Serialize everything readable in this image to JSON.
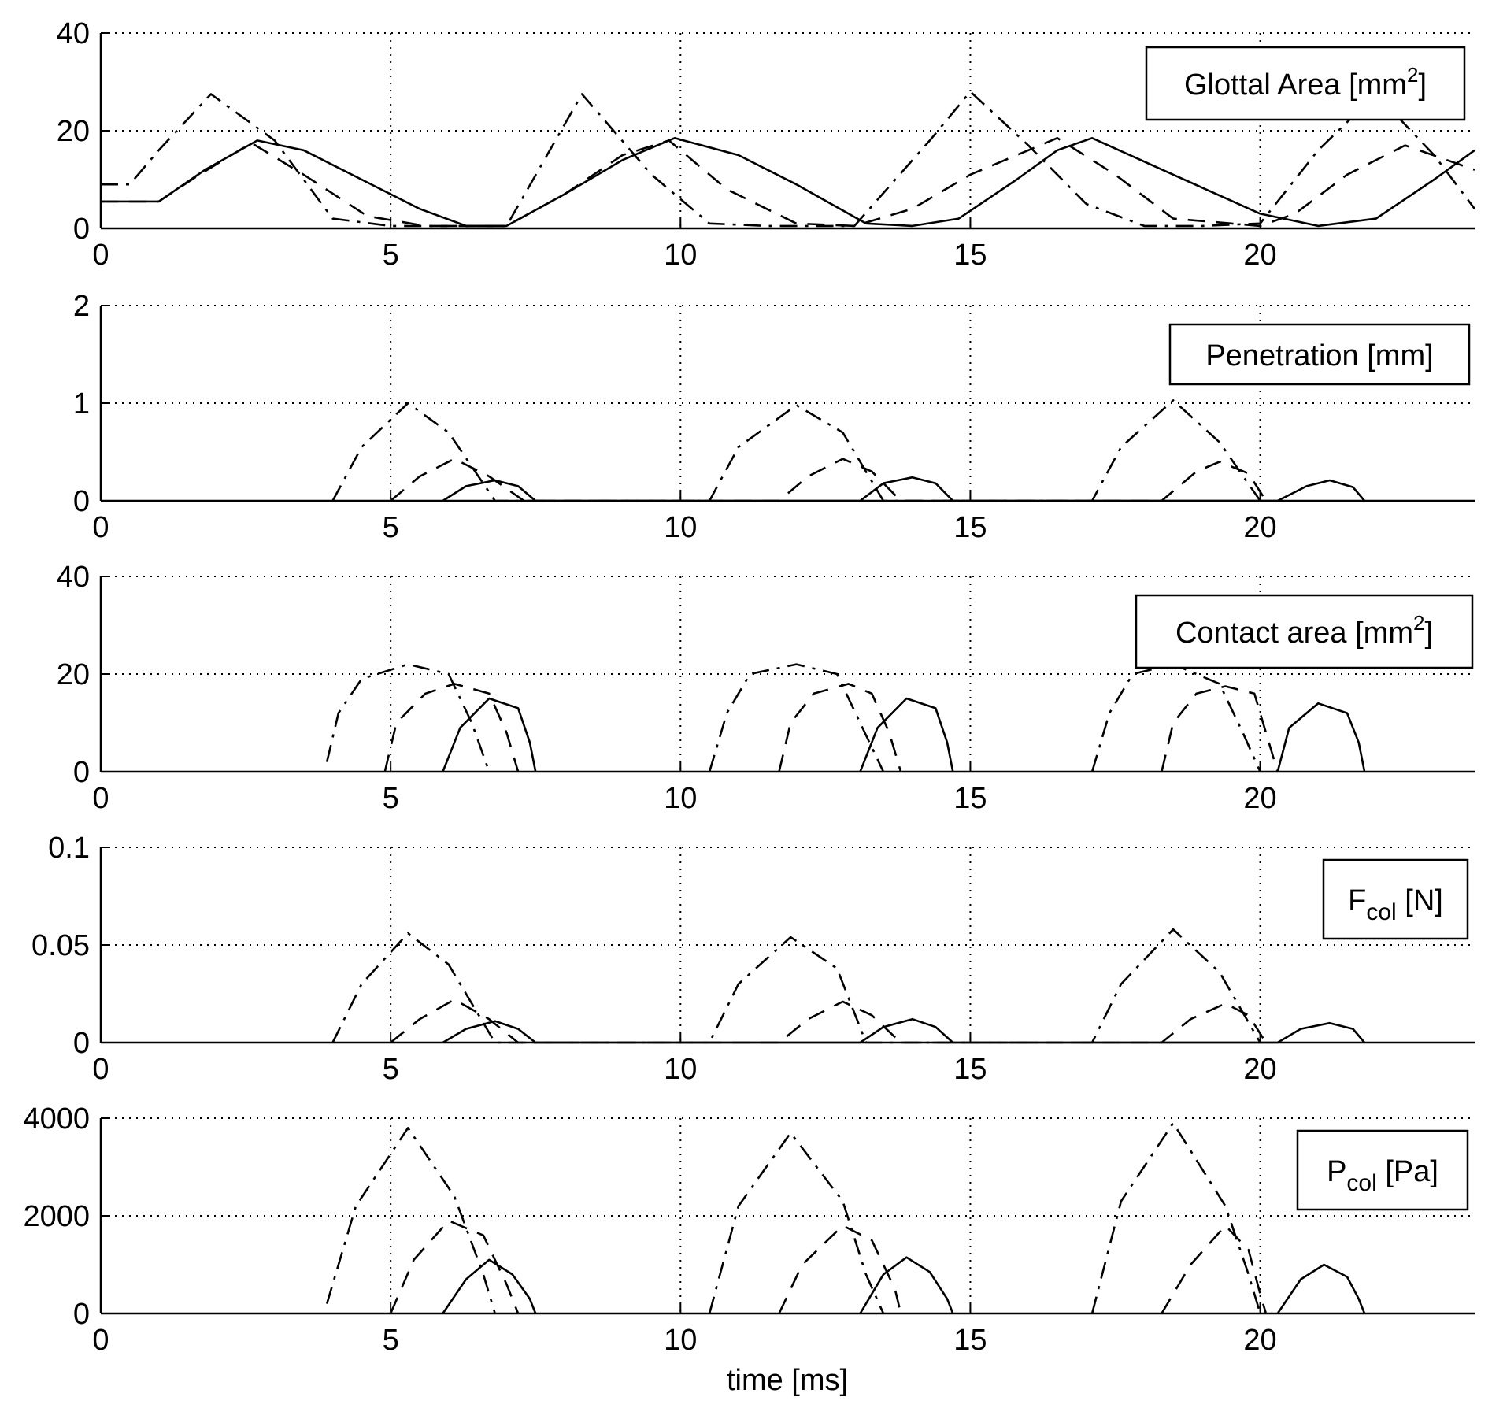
{
  "chart_data": {
    "type": "line",
    "xlabel": "time [ms]",
    "xlim": [
      0,
      23.7
    ],
    "xticks": [
      0,
      5,
      10,
      15,
      20
    ],
    "xtick_labels": [
      "0",
      "5",
      "10",
      "15",
      "20"
    ],
    "grid": true,
    "legend_placement": "top-right",
    "line_styles": [
      "dash-dot",
      "dashed",
      "solid"
    ],
    "panels": [
      {
        "id": "glottal-area",
        "legend": {
          "main": "Glottal Area [mm",
          "sup": "2",
          "post": "]"
        },
        "ylim": [
          0,
          40
        ],
        "yticks": [
          0,
          20,
          40
        ],
        "ytick_labels": [
          "0",
          "20",
          "40"
        ],
        "series": [
          {
            "name": "dash-dot",
            "style": "dash-dot",
            "x": [
              0,
              0.5,
              1.0,
              1.9,
              3.0,
              4.0,
              5.0,
              6.0,
              7.0,
              8.3,
              9.5,
              10.5,
              11.5,
              13.0,
              14.3,
              15.0,
              16.0,
              17.0,
              18.0,
              19.0,
              20.0,
              21.0,
              22.0,
              23.0,
              23.7
            ],
            "y": [
              9,
              9,
              16,
              27.5,
              18,
              2,
              0.5,
              0.5,
              0.5,
              27.5,
              11,
              1,
              0.5,
              0.5,
              18,
              28,
              17,
              5,
              0.5,
              0.5,
              1,
              16,
              27.5,
              15,
              4
            ]
          },
          {
            "name": "dashed",
            "style": "dashed",
            "x": [
              0,
              1.0,
              1.7,
              2.6,
              3.5,
              4.6,
              5.6,
              7.0,
              8.0,
              9.0,
              9.8,
              10.8,
              12.0,
              13.0,
              14.0,
              15.0,
              16.0,
              16.5,
              17.5,
              18.5,
              20.0,
              20.6,
              21.5,
              22.5,
              23.7
            ],
            "y": [
              5.5,
              5.5,
              11,
              17.5,
              11,
              2.5,
              0.5,
              0.5,
              7,
              15,
              18,
              8,
              1,
              0.5,
              4,
              11,
              16,
              18.5,
              11,
              2,
              0.5,
              3,
              11,
              17,
              12
            ]
          },
          {
            "name": "solid",
            "style": "solid",
            "x": [
              0,
              1.0,
              1.8,
              2.7,
              3.5,
              4.5,
              5.5,
              6.3,
              7.0,
              8.0,
              9.0,
              9.9,
              11.0,
              12.0,
              13.2,
              14.0,
              14.8,
              15.8,
              16.5,
              17.1,
              18.5,
              20.0,
              21.0,
              22.0,
              23.0,
              23.7
            ],
            "y": [
              5.5,
              5.5,
              12,
              18,
              16,
              10,
              4,
              0.5,
              0.5,
              7,
              14,
              18.5,
              15,
              9,
              1,
              0.5,
              2,
              10,
              16,
              18.5,
              11,
              3,
              0.5,
              2,
              10,
              16
            ]
          }
        ]
      },
      {
        "id": "penetration",
        "legend": {
          "main": "Penetration [mm]",
          "sub": "",
          "post": ""
        },
        "ylim": [
          0,
          2
        ],
        "yticks": [
          0,
          1,
          2
        ],
        "ytick_labels": [
          "0",
          "1",
          "2"
        ],
        "series": [
          {
            "name": "dash-dot",
            "style": "dash-dot",
            "x": [
              4.0,
              4.5,
              5.3,
              6.0,
              6.8,
              10.5,
              11.0,
              12.0,
              12.8,
              13.5,
              17.1,
              17.6,
              18.5,
              19.3,
              20.0
            ],
            "y": [
              0,
              0.55,
              1.0,
              0.7,
              0,
              0,
              0.55,
              0.98,
              0.7,
              0,
              0,
              0.55,
              1.03,
              0.6,
              0
            ]
          },
          {
            "name": "dashed",
            "style": "dashed",
            "x": [
              5.0,
              5.5,
              6.1,
              6.7,
              7.3,
              11.7,
              12.2,
              12.8,
              13.3,
              13.8,
              18.3,
              18.9,
              19.3,
              19.8,
              20.1
            ],
            "y": [
              0,
              0.25,
              0.43,
              0.25,
              0,
              0,
              0.25,
              0.43,
              0.3,
              0,
              0,
              0.3,
              0.4,
              0.28,
              0
            ]
          },
          {
            "name": "solid",
            "style": "solid",
            "x": [
              5.9,
              6.3,
              6.8,
              7.2,
              7.5,
              13.1,
              13.5,
              14.0,
              14.4,
              14.7,
              20.3,
              20.8,
              21.2,
              21.6,
              21.8
            ],
            "y": [
              0,
              0.15,
              0.21,
              0.15,
              0,
              0,
              0.18,
              0.24,
              0.18,
              0,
              0,
              0.15,
              0.21,
              0.14,
              0
            ]
          }
        ]
      },
      {
        "id": "contact-area",
        "legend": {
          "main": "Contact area [mm",
          "sup": "2",
          "post": "]"
        },
        "ylim": [
          0,
          40
        ],
        "yticks": [
          0,
          20,
          40
        ],
        "ytick_labels": [
          "0",
          "20",
          "40"
        ],
        "series": [
          {
            "name": "dash-dot",
            "style": "dash-dot",
            "x": [
              3.9,
              4.1,
              4.5,
              5.3,
              6.0,
              6.4,
              6.7,
              10.5,
              10.8,
              11.2,
              12.0,
              12.7,
              13.1,
              13.5,
              17.1,
              17.4,
              17.8,
              18.5,
              19.3,
              19.7,
              20.0
            ],
            "y": [
              2,
              12,
              19,
              22,
              20,
              10,
              0,
              0,
              12,
              20,
              22,
              20,
              10,
              0,
              0,
              12,
              20,
              22,
              18,
              8,
              0
            ],
            "breaks_after": [
              6,
              13
            ]
          },
          {
            "name": "dashed",
            "style": "dashed",
            "x": [
              4.9,
              5.1,
              5.6,
              6.1,
              6.7,
              7.0,
              7.2,
              11.7,
              11.9,
              12.3,
              12.9,
              13.3,
              13.6,
              13.8,
              18.3,
              18.5,
              18.9,
              19.4,
              19.9,
              20.1,
              20.3
            ],
            "y": [
              0,
              10,
              16,
              18,
              16,
              8,
              0,
              0,
              10,
              16,
              18,
              16,
              8,
              0,
              0,
              10,
              16,
              17.5,
              16,
              8,
              0
            ],
            "breaks_after": [
              6,
              13
            ]
          },
          {
            "name": "solid",
            "style": "solid",
            "x": [
              5.9,
              6.2,
              6.7,
              7.2,
              7.4,
              7.5,
              13.1,
              13.4,
              13.9,
              14.4,
              14.6,
              14.7,
              20.3,
              20.5,
              21.0,
              21.5,
              21.7,
              21.8
            ],
            "y": [
              0,
              9,
              15,
              13,
              6,
              0,
              0,
              9,
              15,
              13,
              6,
              0,
              0,
              9,
              14,
              12,
              6,
              0
            ],
            "breaks_after": [
              5,
              11
            ]
          }
        ]
      },
      {
        "id": "f-col",
        "legend": {
          "main": "F",
          "sub": "col",
          "post": " [N]"
        },
        "ylim": [
          0,
          0.1
        ],
        "yticks": [
          0,
          0.05,
          0.1
        ],
        "ytick_labels": [
          "0",
          "0.05",
          "0.1"
        ],
        "series": [
          {
            "name": "dash-dot",
            "style": "dash-dot",
            "x": [
              4.0,
              4.5,
              5.3,
              6.0,
              6.8,
              10.5,
              11.0,
              11.9,
              12.7,
              13.2,
              17.1,
              17.6,
              18.5,
              19.3,
              20.0
            ],
            "y": [
              0,
              0.03,
              0.056,
              0.04,
              0,
              0,
              0.03,
              0.054,
              0.038,
              0,
              0,
              0.03,
              0.058,
              0.036,
              0
            ]
          },
          {
            "name": "dashed",
            "style": "dashed",
            "x": [
              5.0,
              5.5,
              6.1,
              6.7,
              7.2,
              11.7,
              12.2,
              12.8,
              13.3,
              13.8,
              18.3,
              18.8,
              19.4,
              19.8,
              20.1
            ],
            "y": [
              0,
              0.012,
              0.022,
              0.012,
              0,
              0,
              0.012,
              0.021,
              0.014,
              0,
              0,
              0.012,
              0.02,
              0.014,
              0
            ]
          },
          {
            "name": "solid",
            "style": "solid",
            "x": [
              5.9,
              6.3,
              6.8,
              7.2,
              7.5,
              13.1,
              13.5,
              14.0,
              14.4,
              14.7,
              20.3,
              20.7,
              21.2,
              21.6,
              21.8
            ],
            "y": [
              0,
              0.007,
              0.011,
              0.007,
              0,
              0,
              0.008,
              0.012,
              0.008,
              0,
              0,
              0.007,
              0.01,
              0.007,
              0
            ]
          }
        ]
      },
      {
        "id": "p-col",
        "legend": {
          "main": "P",
          "sub": "col",
          "post": " [Pa]"
        },
        "ylim": [
          0,
          4000
        ],
        "yticks": [
          0,
          2000,
          4000
        ],
        "ytick_labels": [
          "0",
          "2000",
          "4000"
        ],
        "series": [
          {
            "name": "dash-dot",
            "style": "dash-dot",
            "x": [
              3.9,
              4.4,
              5.3,
              6.1,
              6.6,
              6.8,
              10.5,
              11.0,
              11.9,
              12.8,
              13.2,
              13.5,
              17.1,
              17.6,
              18.5,
              19.4,
              19.8,
              20.0
            ],
            "y": [
              200,
              2200,
              3800,
              2400,
              800,
              0,
              0,
              2200,
              3700,
              2300,
              800,
              0,
              0,
              2300,
              3900,
              2200,
              800,
              0
            ],
            "breaks_after": [
              5,
              11
            ]
          },
          {
            "name": "dashed",
            "style": "dashed",
            "x": [
              5.0,
              5.4,
              6.0,
              6.6,
              7.0,
              7.2,
              11.7,
              12.1,
              12.8,
              13.3,
              13.7,
              13.8,
              18.3,
              18.8,
              19.4,
              19.8,
              20.0,
              20.1
            ],
            "y": [
              0,
              1100,
              1900,
              1600,
              600,
              0,
              0,
              1000,
              1800,
              1500,
              500,
              0,
              0,
              1000,
              1800,
              1300,
              400,
              0
            ],
            "breaks_after": [
              5,
              11
            ]
          },
          {
            "name": "solid",
            "style": "solid",
            "x": [
              5.9,
              6.3,
              6.7,
              7.1,
              7.4,
              7.5,
              13.1,
              13.5,
              13.9,
              14.3,
              14.6,
              14.7,
              20.3,
              20.7,
              21.1,
              21.5,
              21.7,
              21.8
            ],
            "y": [
              0,
              700,
              1100,
              800,
              300,
              0,
              0,
              800,
              1150,
              850,
              300,
              0,
              0,
              700,
              1000,
              750,
              300,
              0
            ],
            "breaks_after": [
              5,
              11
            ]
          }
        ]
      }
    ]
  }
}
